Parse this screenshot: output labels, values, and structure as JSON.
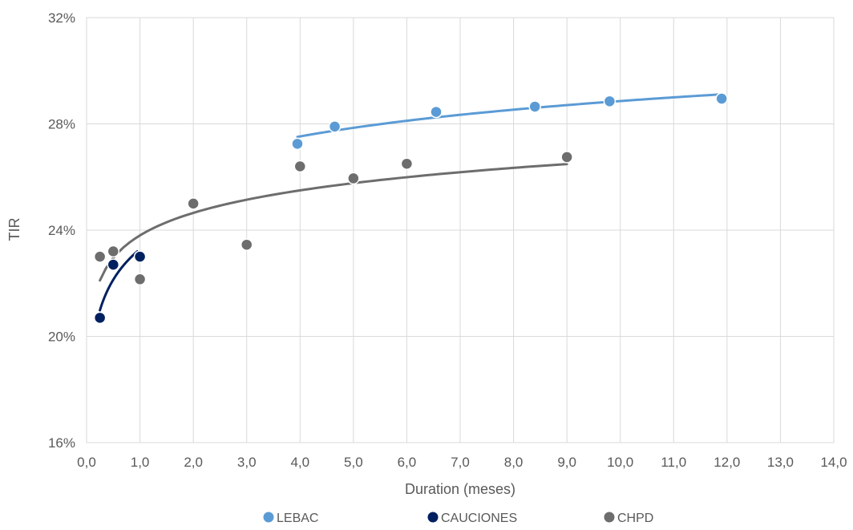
{
  "chart_data": {
    "type": "scatter",
    "xlabel": "Duration (meses)",
    "ylabel": "TIR",
    "xlim": [
      0,
      14
    ],
    "ylim": [
      16,
      32
    ],
    "x_ticks": [
      0,
      1,
      2,
      3,
      4,
      5,
      6,
      7,
      8,
      9,
      10,
      11,
      12,
      13,
      14
    ],
    "x_tick_labels": [
      "0,0",
      "1,0",
      "2,0",
      "3,0",
      "4,0",
      "5,0",
      "6,0",
      "7,0",
      "8,0",
      "9,0",
      "10,0",
      "11,0",
      "12,0",
      "13,0",
      "14,0"
    ],
    "y_ticks": [
      16,
      20,
      24,
      28,
      32
    ],
    "y_tick_labels": [
      "16%",
      "20%",
      "24%",
      "28%",
      "32%"
    ],
    "grid": true,
    "legend_position": "bottom",
    "series": [
      {
        "name": "LEBAC",
        "color": "#5b9bd5",
        "x": [
          3.95,
          4.65,
          6.55,
          8.4,
          9.8,
          11.9
        ],
        "y": [
          27.25,
          27.9,
          28.45,
          28.65,
          28.85,
          28.95
        ],
        "trendline": {
          "type": "logarithmic",
          "x_range": [
            3.95,
            11.9
          ]
        }
      },
      {
        "name": "CAUCIONES",
        "color": "#002060",
        "x": [
          0.25,
          0.5,
          1.0
        ],
        "y": [
          20.7,
          22.7,
          23.0
        ],
        "trendline": {
          "type": "logarithmic",
          "x_range": [
            0.25,
            0.95
          ]
        }
      },
      {
        "name": "CHPD",
        "color": "#6d6d6d",
        "x": [
          0.25,
          0.5,
          1.0,
          2.0,
          3.0,
          4.0,
          5.0,
          6.0,
          9.0
        ],
        "y": [
          23.0,
          23.2,
          22.15,
          25.0,
          23.45,
          26.4,
          25.95,
          26.5,
          26.75
        ],
        "trendline": {
          "type": "logarithmic",
          "x_range": [
            0.25,
            9.0
          ]
        }
      }
    ]
  }
}
